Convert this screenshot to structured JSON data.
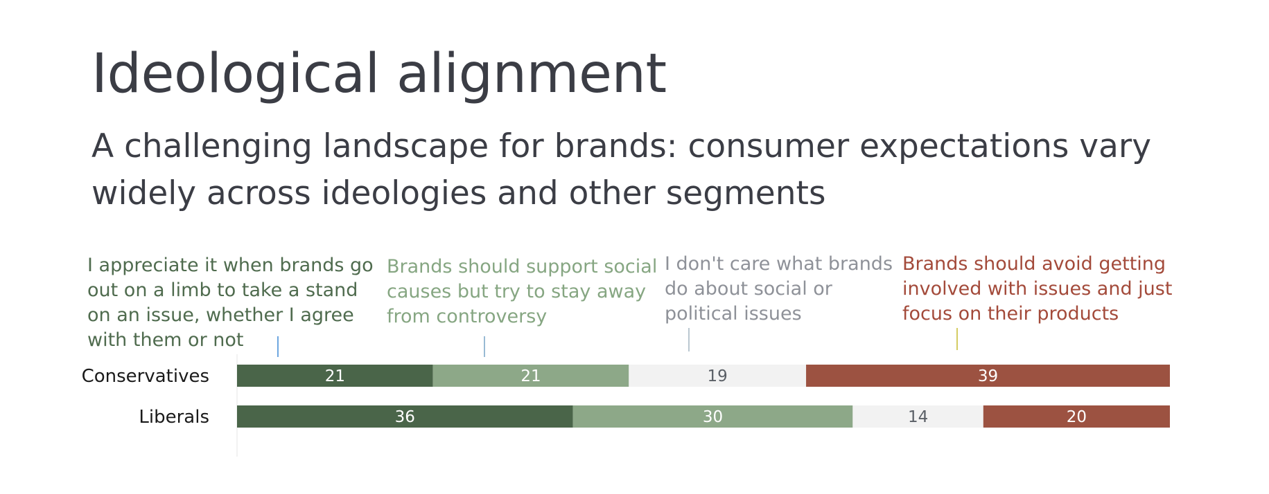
{
  "chart_data": {
    "type": "bar",
    "orientation": "horizontal",
    "stacked": true,
    "title": "Ideological alignment",
    "subtitle": "A challenging landscape for brands: consumer expectations vary widely across ideologies and other segments",
    "categories": [
      "Conservatives",
      "Liberals"
    ],
    "series": [
      {
        "name": "I appreciate it when brands go out on a limb to take a stand on an issue, whether I agree with them or not",
        "color": "#4a6549",
        "label_color": "#4f6b4e",
        "values": [
          21,
          36
        ]
      },
      {
        "name": "Brands should support social causes but try to stay away from controversy",
        "color": "#8da888",
        "label_color": "#86a682",
        "values": [
          21,
          30
        ]
      },
      {
        "name": "I don't care what brands do about social or political issues",
        "color": "#f2f2f2",
        "label_color": "#8e9198",
        "values": [
          19,
          14
        ]
      },
      {
        "name": "Brands should avoid getting involved with issues and just focus on their products",
        "color": "#9c5241",
        "label_color": "#a34a3a",
        "values": [
          39,
          20
        ]
      }
    ],
    "legend_position": "top",
    "grid": false
  }
}
